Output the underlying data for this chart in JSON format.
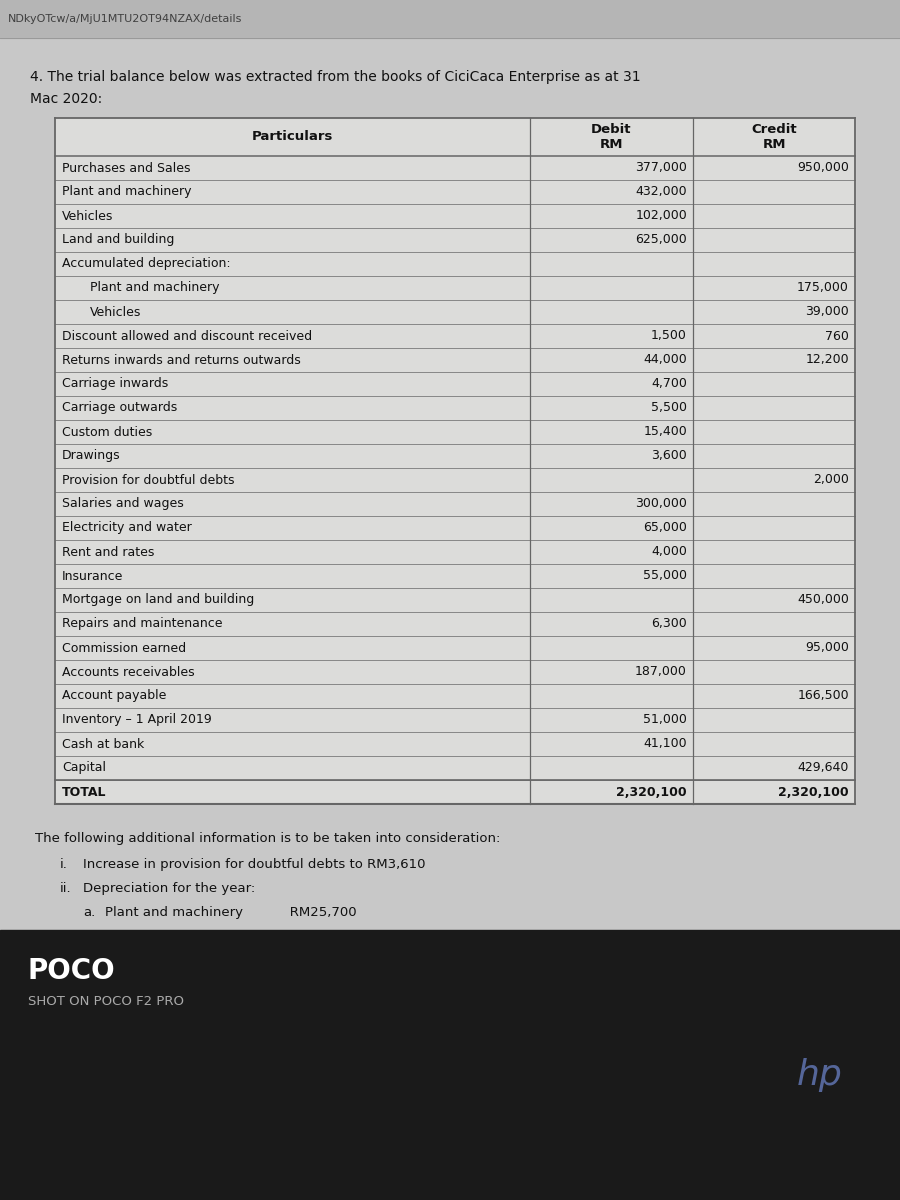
{
  "browser_bar_text": "NDkyOTcw/a/MjU1MTU2OT94NZAX/details",
  "question_line1": "4. The trial balance below was extracted from the books of CiciCaca Enterprise as at 31",
  "question_line2": "Mac 2020:",
  "rows": [
    {
      "particulars": "Purchases and Sales",
      "debit": "377,000",
      "credit": "950,000",
      "indent": false,
      "bold": false
    },
    {
      "particulars": "Plant and machinery",
      "debit": "432,000",
      "credit": "",
      "indent": false,
      "bold": false
    },
    {
      "particulars": "Vehicles",
      "debit": "102,000",
      "credit": "",
      "indent": false,
      "bold": false
    },
    {
      "particulars": "Land and building",
      "debit": "625,000",
      "credit": "",
      "indent": false,
      "bold": false
    },
    {
      "particulars": "Accumulated depreciation:",
      "debit": "",
      "credit": "",
      "indent": false,
      "bold": false
    },
    {
      "particulars": "Plant and machinery",
      "debit": "",
      "credit": "175,000",
      "indent": true,
      "bold": false
    },
    {
      "particulars": "Vehicles",
      "debit": "",
      "credit": "39,000",
      "indent": true,
      "bold": false
    },
    {
      "particulars": "Discount allowed and discount received",
      "debit": "1,500",
      "credit": "760",
      "indent": false,
      "bold": false
    },
    {
      "particulars": "Returns inwards and returns outwards",
      "debit": "44,000",
      "credit": "12,200",
      "indent": false,
      "bold": false
    },
    {
      "particulars": "Carriage inwards",
      "debit": "4,700",
      "credit": "",
      "indent": false,
      "bold": false
    },
    {
      "particulars": "Carriage outwards",
      "debit": "5,500",
      "credit": "",
      "indent": false,
      "bold": false
    },
    {
      "particulars": "Custom duties",
      "debit": "15,400",
      "credit": "",
      "indent": false,
      "bold": false
    },
    {
      "particulars": "Drawings",
      "debit": "3,600",
      "credit": "",
      "indent": false,
      "bold": false
    },
    {
      "particulars": "Provision for doubtful debts",
      "debit": "",
      "credit": "2,000",
      "indent": false,
      "bold": false
    },
    {
      "particulars": "Salaries and wages",
      "debit": "300,000",
      "credit": "",
      "indent": false,
      "bold": false
    },
    {
      "particulars": "Electricity and water",
      "debit": "65,000",
      "credit": "",
      "indent": false,
      "bold": false
    },
    {
      "particulars": "Rent and rates",
      "debit": "4,000",
      "credit": "",
      "indent": false,
      "bold": false
    },
    {
      "particulars": "Insurance",
      "debit": "55,000",
      "credit": "",
      "indent": false,
      "bold": false
    },
    {
      "particulars": "Mortgage on land and building",
      "debit": "",
      "credit": "450,000",
      "indent": false,
      "bold": false
    },
    {
      "particulars": "Repairs and maintenance",
      "debit": "6,300",
      "credit": "",
      "indent": false,
      "bold": false
    },
    {
      "particulars": "Commission earned",
      "debit": "",
      "credit": "95,000",
      "indent": false,
      "bold": false
    },
    {
      "particulars": "Accounts receivables",
      "debit": "187,000",
      "credit": "",
      "indent": false,
      "bold": false
    },
    {
      "particulars": "Account payable",
      "debit": "",
      "credit": "166,500",
      "indent": false,
      "bold": false
    },
    {
      "particulars": "Inventory – 1 April 2019",
      "debit": "51,000",
      "credit": "",
      "indent": false,
      "bold": false
    },
    {
      "particulars": "Cash at bank",
      "debit": "41,100",
      "credit": "",
      "indent": false,
      "bold": false
    },
    {
      "particulars": "Capital",
      "debit": "",
      "credit": "429,640",
      "indent": false,
      "bold": false
    },
    {
      "particulars": "TOTAL",
      "debit": "2,320,100",
      "credit": "2,320,100",
      "indent": false,
      "bold": true
    }
  ],
  "additional_info_title": "The following additional information is to be taken into consideration:",
  "additional_info": [
    {
      "label": "i.",
      "text": "Increase in provision for doubtful debts to RM3,610"
    },
    {
      "label": "ii.",
      "text": "Depreciation for the year:"
    },
    {
      "label": "a.",
      "text": "Plant and machinery           RM25,700",
      "sub": true
    }
  ],
  "footer_text1": "POCO",
  "footer_text2": "SHOT ON POCO F2 PRO",
  "bg_gray": "#c8c8c8",
  "bg_bar": "#b5b5b5",
  "bg_dark": "#1a1a1a",
  "table_bg": "#dcdcda",
  "text_dark": "#111111",
  "text_bar": "#404040"
}
